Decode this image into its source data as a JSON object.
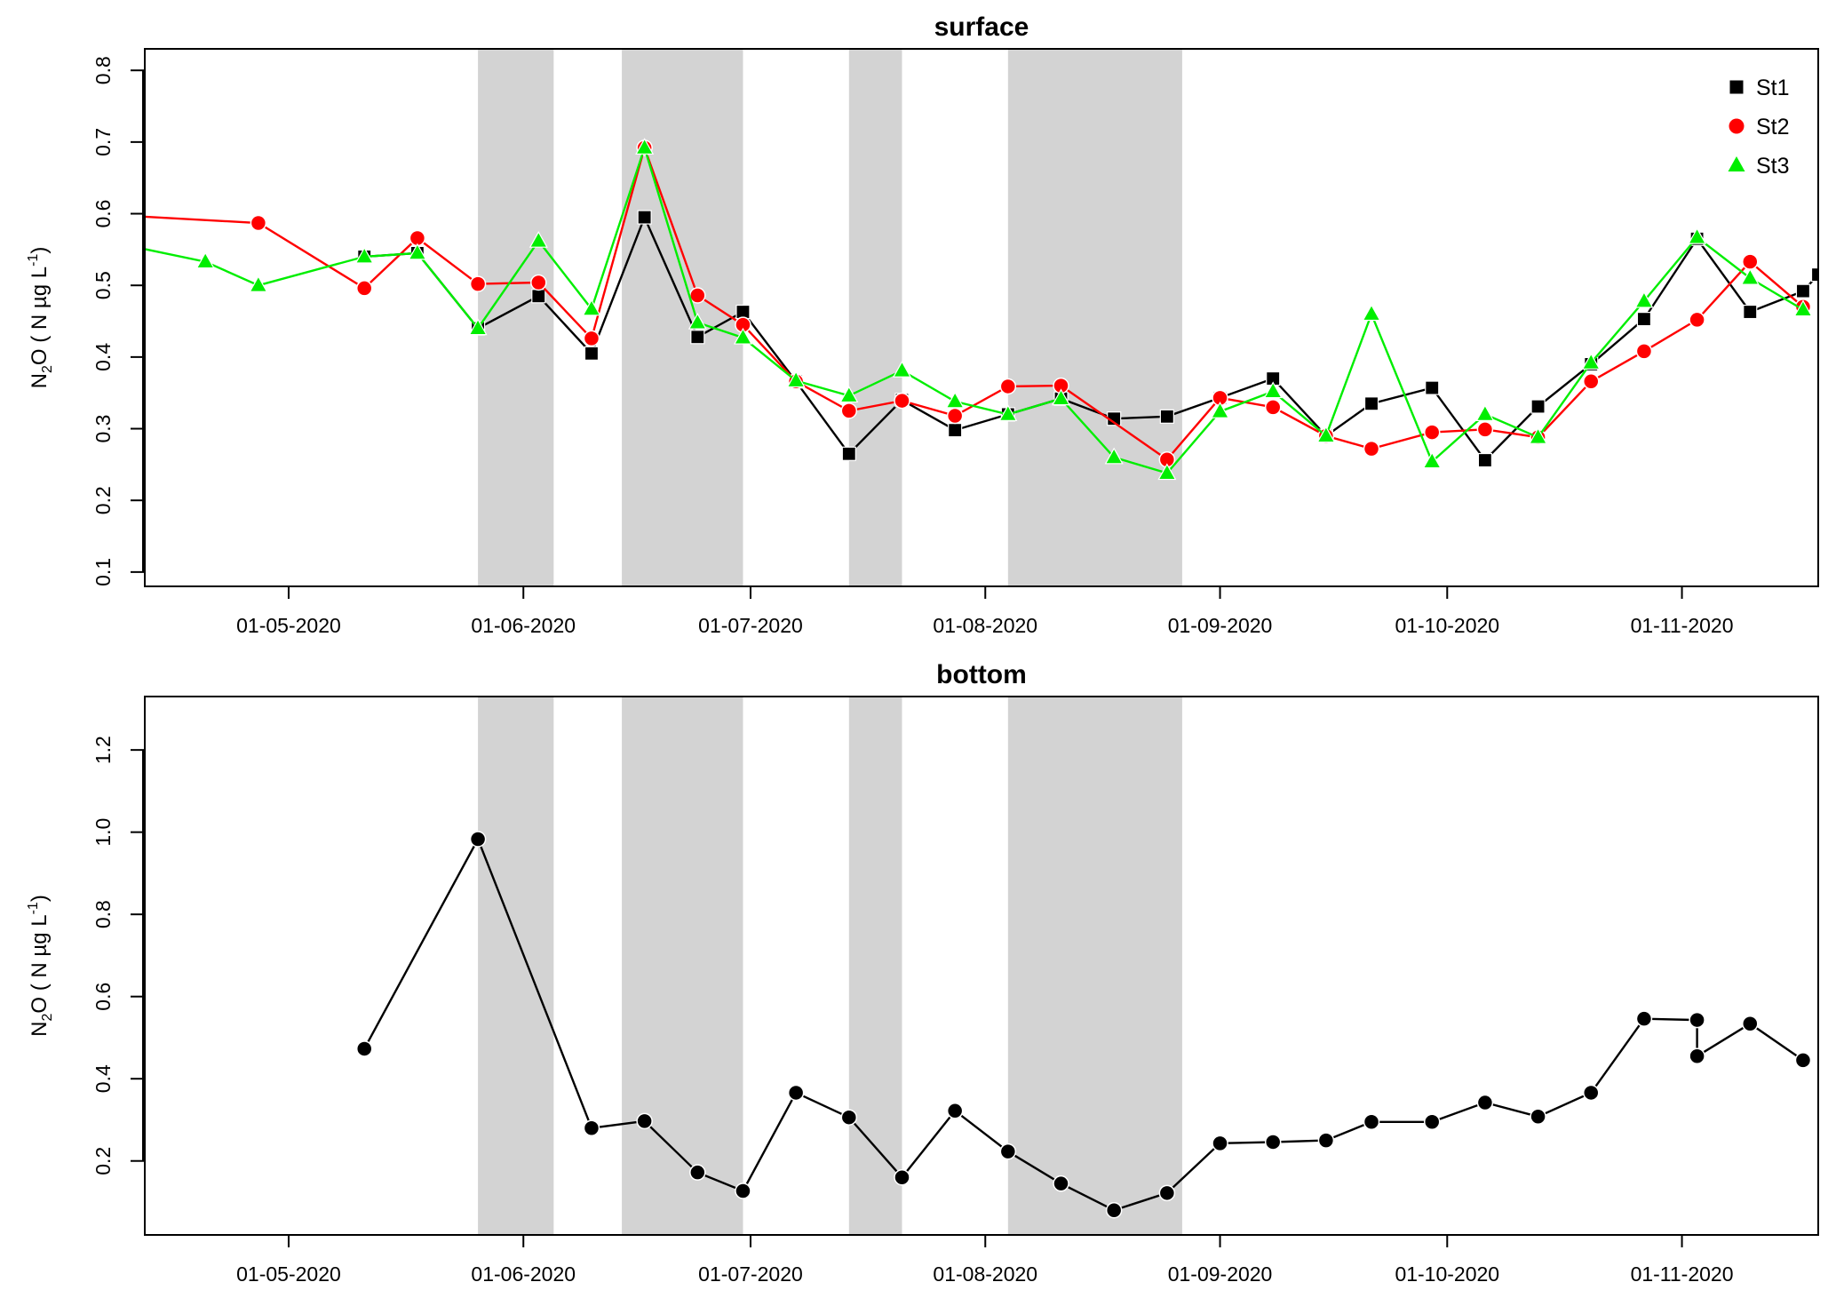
{
  "chart_data": [
    {
      "type": "line",
      "title": "surface",
      "ylabel": {
        "base": "N",
        "sub": "2",
        "mid": "O ( N µg L",
        "sup": "-1",
        "end": ")"
      },
      "x_tick_labels": [
        "01-05-2020",
        "01-06-2020",
        "01-07-2020",
        "01-08-2020",
        "01-09-2020",
        "01-10-2020",
        "01-11-2020"
      ],
      "x_range": [
        "2020-04-12",
        "2020-11-19"
      ],
      "ylim": [
        0.08,
        0.83
      ],
      "y_ticks": [
        {
          "value": 0.1,
          "label": "0.1"
        },
        {
          "value": 0.2,
          "label": "0.2"
        },
        {
          "value": 0.3,
          "label": "0.3"
        },
        {
          "value": 0.4,
          "label": "0.4"
        },
        {
          "value": 0.5,
          "label": "0.5"
        },
        {
          "value": 0.6,
          "label": "0.6"
        },
        {
          "value": 0.7,
          "label": "0.7"
        },
        {
          "value": 0.8,
          "label": "0.8"
        }
      ],
      "grid": false,
      "legend_position": "top-right",
      "shaded_periods": [
        [
          "2020-05-26",
          "2020-06-05"
        ],
        [
          "2020-06-14",
          "2020-06-30"
        ],
        [
          "2020-07-14",
          "2020-07-21"
        ],
        [
          "2020-08-04",
          "2020-08-27"
        ]
      ],
      "series": [
        {
          "name": "St1",
          "color": "#000000",
          "marker": "square",
          "x": [
            "2020-05-11",
            "2020-05-18",
            "2020-05-26",
            "2020-06-03",
            "2020-06-10",
            "2020-06-17",
            "2020-06-24",
            "2020-06-30",
            "2020-07-07",
            "2020-07-14",
            "2020-07-21",
            "2020-07-28",
            "2020-08-04",
            "2020-08-11",
            "2020-08-18",
            "2020-08-25",
            "2020-09-01",
            "2020-09-08",
            "2020-09-15",
            "2020-09-21",
            "2020-09-29",
            "2020-10-06",
            "2020-10-13",
            "2020-10-20",
            "2020-10-27",
            "2020-11-03",
            "2020-11-10",
            "2020-11-17",
            "2020-11-19"
          ],
          "y": [
            0.54,
            0.545,
            0.44,
            0.485,
            0.405,
            0.595,
            0.428,
            0.463,
            0.366,
            0.265,
            0.34,
            0.298,
            0.32,
            0.342,
            0.314,
            0.317,
            0.343,
            0.37,
            0.29,
            0.335,
            0.357,
            0.256,
            0.331,
            0.39,
            0.453,
            0.565,
            0.463,
            0.492,
            0.515
          ]
        },
        {
          "name": "St2",
          "color": "#ff0000",
          "marker": "circle",
          "x": [
            "2020-04-10",
            "2020-04-27",
            "2020-05-11",
            "2020-05-18",
            "2020-05-26",
            "2020-06-03",
            "2020-06-10",
            "2020-06-17",
            "2020-06-24",
            "2020-06-30",
            "2020-07-07",
            "2020-07-14",
            "2020-07-21",
            "2020-07-28",
            "2020-08-04",
            "2020-08-11",
            "2020-08-25",
            "2020-09-01",
            "2020-09-08",
            "2020-09-15",
            "2020-09-21",
            "2020-09-29",
            "2020-10-06",
            "2020-10-13",
            "2020-10-20",
            "2020-10-27",
            "2020-11-03",
            "2020-11-10",
            "2020-11-17"
          ],
          "y": [
            0.597,
            0.587,
            0.496,
            0.566,
            0.502,
            0.504,
            0.426,
            0.692,
            0.486,
            0.445,
            0.366,
            0.325,
            0.339,
            0.318,
            0.359,
            0.36,
            0.257,
            0.343,
            0.33,
            0.29,
            0.272,
            0.295,
            0.299,
            0.288,
            0.366,
            0.408,
            0.452,
            0.533,
            0.47
          ]
        },
        {
          "name": "St3",
          "color": "#00ee00",
          "marker": "triangle",
          "x": [
            "2020-04-10",
            "2020-04-20",
            "2020-04-27",
            "2020-05-11",
            "2020-05-18",
            "2020-05-26",
            "2020-06-03",
            "2020-06-10",
            "2020-06-17",
            "2020-06-24",
            "2020-06-30",
            "2020-07-07",
            "2020-07-14",
            "2020-07-21",
            "2020-07-28",
            "2020-08-04",
            "2020-08-11",
            "2020-08-18",
            "2020-08-25",
            "2020-09-01",
            "2020-09-08",
            "2020-09-15",
            "2020-09-21",
            "2020-09-29",
            "2020-10-06",
            "2020-10-13",
            "2020-10-20",
            "2020-10-27",
            "2020-11-03",
            "2020-11-10",
            "2020-11-17"
          ],
          "y": [
            0.555,
            0.533,
            0.5,
            0.54,
            0.545,
            0.44,
            0.562,
            0.467,
            0.692,
            0.448,
            0.427,
            0.367,
            0.346,
            0.381,
            0.338,
            0.32,
            0.342,
            0.26,
            0.238,
            0.324,
            0.352,
            0.29,
            0.46,
            0.254,
            0.32,
            0.288,
            0.392,
            0.478,
            0.567,
            0.51,
            0.466
          ]
        }
      ]
    },
    {
      "type": "line",
      "title": "bottom",
      "ylabel": {
        "base": "N",
        "sub": "2",
        "mid": "O ( N µg L",
        "sup": "-1",
        "end": ")"
      },
      "x_tick_labels": [
        "01-05-2020",
        "01-06-2020",
        "01-07-2020",
        "01-08-2020",
        "01-09-2020",
        "01-10-2020",
        "01-11-2020"
      ],
      "x_range": [
        "2020-04-12",
        "2020-11-19"
      ],
      "ylim": [
        0.02,
        1.33
      ],
      "y_ticks": [
        {
          "value": 0.2,
          "label": "0.2"
        },
        {
          "value": 0.4,
          "label": "0.4"
        },
        {
          "value": 0.6,
          "label": "0.6"
        },
        {
          "value": 0.8,
          "label": "0.8"
        },
        {
          "value": 1.0,
          "label": "1.0"
        },
        {
          "value": 1.2,
          "label": "1.2"
        }
      ],
      "grid": false,
      "shaded_periods": [
        [
          "2020-05-26",
          "2020-06-05"
        ],
        [
          "2020-06-14",
          "2020-06-30"
        ],
        [
          "2020-07-14",
          "2020-07-21"
        ],
        [
          "2020-08-04",
          "2020-08-27"
        ]
      ],
      "series": [
        {
          "color": "#000000",
          "marker": "circle",
          "x": [
            "2020-05-11",
            "2020-05-26",
            "2020-06-10",
            "2020-06-17",
            "2020-06-24",
            "2020-06-30",
            "2020-07-07",
            "2020-07-14",
            "2020-07-21",
            "2020-07-28",
            "2020-08-04",
            "2020-08-11",
            "2020-08-18",
            "2020-08-25",
            "2020-09-01",
            "2020-09-08",
            "2020-09-15",
            "2020-09-21",
            "2020-09-29",
            "2020-10-06",
            "2020-10-13",
            "2020-10-20",
            "2020-10-27",
            "2020-11-03",
            "2020-11-03",
            "2020-11-10",
            "2020-11-17"
          ],
          "y": [
            0.473,
            0.983,
            0.28,
            0.297,
            0.172,
            0.127,
            0.366,
            0.306,
            0.16,
            0.322,
            0.223,
            0.145,
            0.08,
            0.122,
            0.243,
            0.246,
            0.25,
            0.295,
            0.295,
            0.342,
            0.308,
            0.366,
            0.546,
            0.543,
            0.455,
            0.534,
            0.445
          ]
        }
      ]
    }
  ]
}
